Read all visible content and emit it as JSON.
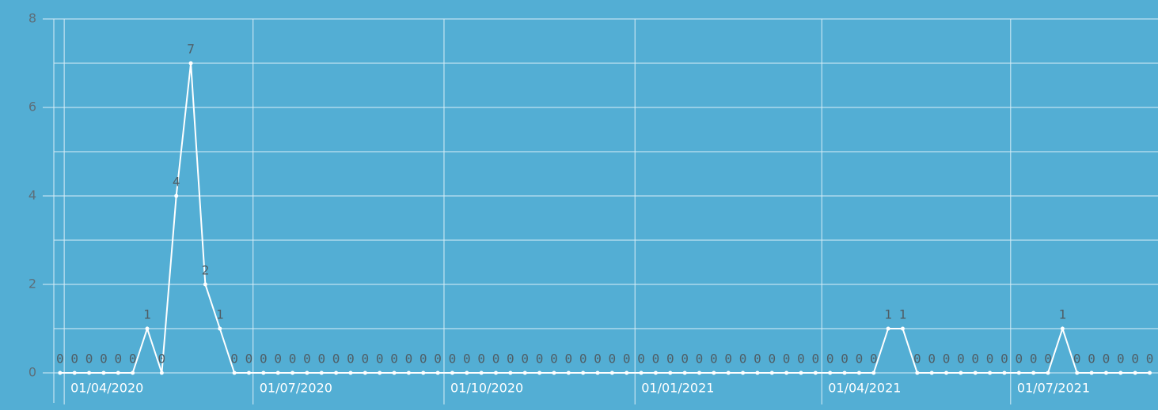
{
  "chart_data": {
    "type": "line",
    "x": [
      "2020-03-30",
      "2020-04-06",
      "2020-04-13",
      "2020-04-20",
      "2020-04-27",
      "2020-05-04",
      "2020-05-11",
      "2020-05-18",
      "2020-05-25",
      "2020-06-01",
      "2020-06-08",
      "2020-06-15",
      "2020-06-22",
      "2020-06-29",
      "2020-07-06",
      "2020-07-13",
      "2020-07-20",
      "2020-07-27",
      "2020-08-03",
      "2020-08-10",
      "2020-08-17",
      "2020-08-24",
      "2020-08-31",
      "2020-09-07",
      "2020-09-14",
      "2020-09-21",
      "2020-09-28",
      "2020-10-05",
      "2020-10-12",
      "2020-10-19",
      "2020-10-26",
      "2020-11-02",
      "2020-11-09",
      "2020-11-16",
      "2020-11-23",
      "2020-11-30",
      "2020-12-07",
      "2020-12-14",
      "2020-12-21",
      "2020-12-28",
      "2021-01-04",
      "2021-01-11",
      "2021-01-18",
      "2021-01-25",
      "2021-02-01",
      "2021-02-08",
      "2021-02-15",
      "2021-02-22",
      "2021-03-01",
      "2021-03-08",
      "2021-03-15",
      "2021-03-22",
      "2021-03-29",
      "2021-04-05",
      "2021-04-12",
      "2021-04-19",
      "2021-04-26",
      "2021-05-03",
      "2021-05-10",
      "2021-05-17",
      "2021-05-24",
      "2021-05-31",
      "2021-06-07",
      "2021-06-14",
      "2021-06-21",
      "2021-06-28",
      "2021-07-05",
      "2021-07-12",
      "2021-07-19",
      "2021-07-26",
      "2021-08-02",
      "2021-08-09",
      "2021-08-16",
      "2021-08-23",
      "2021-08-30",
      "2021-09-06"
    ],
    "series": [
      {
        "color": "#ffffff",
        "values": [
          0,
          0,
          0,
          0,
          0,
          0,
          1,
          0,
          4,
          7,
          2,
          1,
          0,
          0,
          0,
          0,
          0,
          0,
          0,
          0,
          0,
          0,
          0,
          0,
          0,
          0,
          0,
          0,
          0,
          0,
          0,
          0,
          0,
          0,
          0,
          0,
          0,
          0,
          0,
          0,
          0,
          0,
          0,
          0,
          0,
          0,
          0,
          0,
          0,
          0,
          0,
          0,
          0,
          0,
          0,
          0,
          0,
          1,
          1,
          0,
          0,
          0,
          0,
          0,
          0,
          0,
          0,
          0,
          0,
          1,
          0,
          0,
          0,
          0,
          0,
          0
        ]
      }
    ],
    "xlim": [
      "2020-03-27",
      "2021-09-10"
    ],
    "xticks": [
      {
        "value": "2020-04-01",
        "label": "01/04/2020"
      },
      {
        "value": "2020-07-01",
        "label": "01/07/2020"
      },
      {
        "value": "2020-10-01",
        "label": "01/10/2020"
      },
      {
        "value": "2021-01-01",
        "label": "01/01/2021"
      },
      {
        "value": "2021-04-01",
        "label": "01/04/2021"
      },
      {
        "value": "2021-07-01",
        "label": "01/07/2021"
      }
    ],
    "ylim": [
      0,
      8
    ],
    "yticks": [
      0,
      2,
      4,
      6,
      8
    ],
    "grid": true,
    "background": "#53aed4"
  }
}
